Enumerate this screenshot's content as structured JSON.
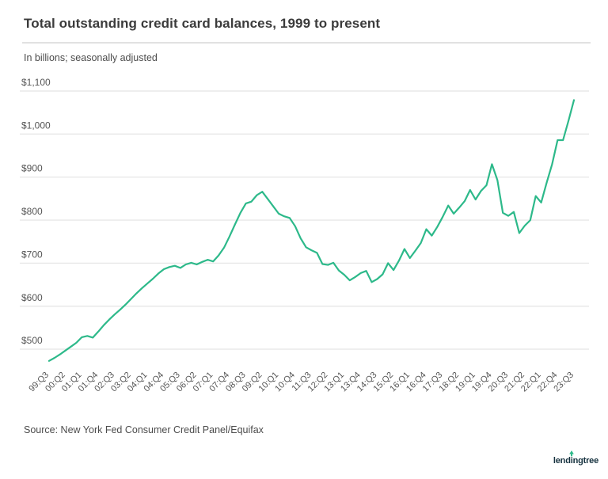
{
  "header": {
    "title": "Total outstanding credit card balances, 1999 to present",
    "subtitle": "In billions; seasonally adjusted"
  },
  "footer": {
    "source": "Source: New York Fed Consumer Credit Panel/Equifax",
    "logo": {
      "full": "lendingtree",
      "pre": "lend",
      "i": "i",
      "post": "ngtree"
    }
  },
  "colors": {
    "line": "#2db98a",
    "grid": "#e8e8e8",
    "axis_text": "#555555",
    "title_text": "#3b3b3b",
    "logo_text": "#16323f",
    "logo_tree": "#2db98a"
  },
  "chart_data": {
    "type": "line",
    "title": "Total outstanding credit card balances, 1999 to present",
    "subtitle": "In billions; seasonally adjusted",
    "series_name": "Total outstanding credit card balances ($B)",
    "unit": "USD billions",
    "legend": "none",
    "grid": "horizontal-only",
    "x_tick_every": 3,
    "y_ticks": [
      500,
      600,
      700,
      800,
      900,
      1000,
      1100
    ],
    "y_tick_labels": [
      "$500",
      "$600",
      "$700",
      "$800",
      "$900",
      "$1,000",
      "$1,100"
    ],
    "ylim": [
      455,
      1110
    ],
    "x": [
      "99:Q3",
      "99:Q4",
      "00:Q1",
      "00:Q2",
      "00:Q3",
      "00:Q4",
      "01:Q1",
      "01:Q2",
      "01:Q3",
      "01:Q4",
      "02:Q1",
      "02:Q2",
      "02:Q3",
      "02:Q4",
      "03:Q1",
      "03:Q2",
      "03:Q3",
      "03:Q4",
      "04:Q1",
      "04:Q2",
      "04:Q3",
      "04:Q4",
      "05:Q1",
      "05:Q2",
      "05:Q3",
      "05:Q4",
      "06:Q1",
      "06:Q2",
      "06:Q3",
      "06:Q4",
      "07:Q1",
      "07:Q2",
      "07:Q3",
      "07:Q4",
      "08:Q1",
      "08:Q2",
      "08:Q3",
      "08:Q4",
      "09:Q1",
      "09:Q2",
      "09:Q3",
      "09:Q4",
      "10:Q1",
      "10:Q2",
      "10:Q3",
      "10:Q4",
      "11:Q1",
      "11:Q2",
      "11:Q3",
      "11:Q4",
      "12:Q1",
      "12:Q2",
      "12:Q3",
      "12:Q4",
      "13:Q1",
      "13:Q2",
      "13:Q3",
      "13:Q4",
      "14:Q1",
      "14:Q2",
      "14:Q3",
      "14:Q4",
      "15:Q1",
      "15:Q2",
      "15:Q3",
      "15:Q4",
      "16:Q1",
      "16:Q2",
      "16:Q3",
      "16:Q4",
      "17:Q1",
      "17:Q2",
      "17:Q3",
      "17:Q4",
      "18:Q1",
      "18:Q2",
      "18:Q3",
      "18:Q4",
      "19:Q1",
      "19:Q2",
      "19:Q3",
      "19:Q4",
      "20:Q1",
      "20:Q2",
      "20:Q3",
      "20:Q4",
      "21:Q1",
      "21:Q2",
      "21:Q3",
      "21:Q4",
      "22:Q1",
      "22:Q2",
      "22:Q3",
      "22:Q4",
      "23:Q1",
      "23:Q2",
      "23:Q3"
    ],
    "values": [
      473,
      480,
      488,
      497,
      506,
      515,
      528,
      531,
      527,
      541,
      556,
      569,
      581,
      592,
      604,
      617,
      630,
      642,
      653,
      664,
      676,
      686,
      691,
      694,
      689,
      697,
      701,
      697,
      703,
      708,
      704,
      718,
      736,
      762,
      790,
      817,
      839,
      843,
      858,
      866,
      849,
      832,
      815,
      809,
      805,
      786,
      758,
      737,
      730,
      724,
      698,
      696,
      701,
      683,
      673,
      660,
      668,
      677,
      682,
      656,
      663,
      674,
      700,
      684,
      706,
      733,
      712,
      729,
      747,
      779,
      764,
      784,
      808,
      834,
      815,
      829,
      844,
      870,
      848,
      868,
      881,
      930,
      893,
      817,
      810,
      819,
      770,
      787,
      800,
      856,
      841,
      887,
      930,
      986,
      986,
      1031,
      1079
    ]
  }
}
